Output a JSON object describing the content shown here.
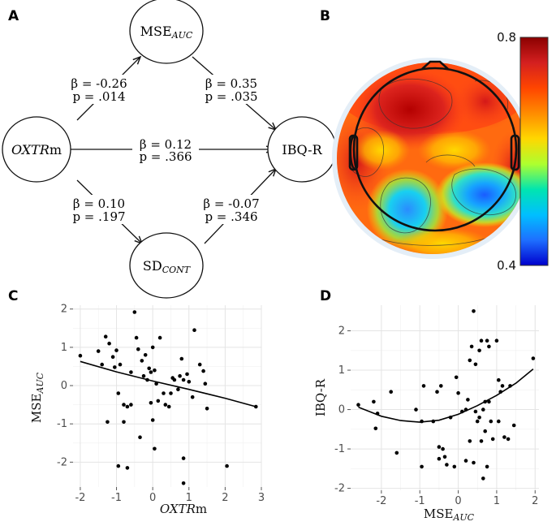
{
  "panels": {
    "A": "A",
    "B": "B",
    "C": "C",
    "D": "D"
  },
  "diagram": {
    "nodes": {
      "mse": {
        "base": "MSE",
        "sub": "AUC"
      },
      "oxtr": {
        "italic": "OXTR",
        "rest": "m"
      },
      "ibq": {
        "label": "IBQ-R"
      },
      "sd": {
        "base": "SD",
        "sub": "CONT"
      }
    },
    "paths": {
      "oxtr_mse": {
        "beta": "β = -0.26",
        "p": "p = .014"
      },
      "mse_ibq": {
        "beta": "β = 0.35",
        "p": "p = .035"
      },
      "oxtr_ibq": {
        "beta": "β = 0.12",
        "p": "p = .366"
      },
      "oxtr_sd": {
        "beta": "β = 0.10",
        "p": "p = .197"
      },
      "sd_ibq": {
        "beta": "β = -0.07",
        "p": "p = .346"
      }
    }
  },
  "topomap": {
    "colorbar": {
      "max_label": "0.8",
      "min_label": "0.4",
      "colors": [
        "#8b0000",
        "#d42020",
        "#ff4500",
        "#ff8c00",
        "#ffd700",
        "#adff2f",
        "#00e5b0",
        "#00bfff",
        "#1e6fff",
        "#0000cd"
      ]
    }
  },
  "chart_data": [
    {
      "type": "scatter",
      "panel": "C",
      "xlabel": {
        "italic": "OXTR",
        "rest": "m"
      },
      "ylabel": {
        "base": "MSE",
        "sub": "AUC"
      },
      "xlim": [
        -2.2,
        3.0
      ],
      "ylim": [
        -2.65,
        2.1
      ],
      "xticks": [
        -2,
        -1,
        0,
        1,
        2,
        3
      ],
      "yticks": [
        -2,
        -1,
        0,
        1,
        2
      ],
      "points": [
        [
          -2.0,
          0.78
        ],
        [
          -1.5,
          0.9
        ],
        [
          -1.4,
          0.55
        ],
        [
          -1.3,
          1.28
        ],
        [
          -1.2,
          1.1
        ],
        [
          -1.1,
          0.75
        ],
        [
          -1.05,
          0.48
        ],
        [
          -1.0,
          0.92
        ],
        [
          -0.95,
          -0.2
        ],
        [
          -0.9,
          0.55
        ],
        [
          -0.8,
          -0.5
        ],
        [
          -0.7,
          -0.55
        ],
        [
          -0.6,
          0.35
        ],
        [
          -0.5,
          1.92
        ],
        [
          -0.45,
          1.25
        ],
        [
          -0.4,
          0.95
        ],
        [
          -0.3,
          0.65
        ],
        [
          -0.25,
          0.25
        ],
        [
          -0.2,
          0.8
        ],
        [
          -0.15,
          0.15
        ],
        [
          -0.1,
          0.45
        ],
        [
          -0.05,
          0.35
        ],
        [
          0.0,
          1.0
        ],
        [
          0.05,
          0.4
        ],
        [
          0.1,
          0.05
        ],
        [
          0.15,
          -0.4
        ],
        [
          0.2,
          1.25
        ],
        [
          0.3,
          -0.2
        ],
        [
          0.35,
          -0.5
        ],
        [
          0.45,
          -0.55
        ],
        [
          0.55,
          0.2
        ],
        [
          0.6,
          0.15
        ],
        [
          0.7,
          -0.1
        ],
        [
          0.75,
          0.25
        ],
        [
          0.8,
          0.7
        ],
        [
          0.85,
          0.15
        ],
        [
          0.95,
          0.3
        ],
        [
          1.0,
          0.1
        ],
        [
          1.1,
          -0.3
        ],
        [
          1.15,
          1.45
        ],
        [
          1.3,
          0.55
        ],
        [
          1.4,
          0.38
        ],
        [
          1.45,
          0.05
        ],
        [
          1.5,
          -0.6
        ],
        [
          2.05,
          -2.1
        ],
        [
          2.85,
          -0.55
        ],
        [
          -1.25,
          -0.95
        ],
        [
          -0.95,
          -2.1
        ],
        [
          -0.7,
          -2.15
        ],
        [
          -0.8,
          -0.95
        ],
        [
          -0.35,
          -1.35
        ],
        [
          0.0,
          -0.9
        ],
        [
          0.05,
          -1.65
        ],
        [
          0.85,
          -1.9
        ],
        [
          0.85,
          -2.55
        ],
        [
          0.5,
          -0.2
        ],
        [
          -0.05,
          -0.45
        ],
        [
          -0.6,
          -0.5
        ]
      ],
      "curve": [
        [
          -2.0,
          0.63
        ],
        [
          -1.0,
          0.36
        ],
        [
          0.0,
          0.12
        ],
        [
          1.0,
          -0.1
        ],
        [
          2.0,
          -0.33
        ],
        [
          2.85,
          -0.55
        ]
      ]
    },
    {
      "type": "scatter",
      "panel": "D",
      "xlabel": {
        "base": "MSE",
        "sub": "AUC"
      },
      "ylabel": {
        "label": "IBQ-R"
      },
      "xlim": [
        -2.8,
        2.1
      ],
      "ylim": [
        -2.05,
        2.65
      ],
      "xticks": [
        -2,
        -1,
        0,
        1,
        2
      ],
      "yticks": [
        -2,
        -1,
        0,
        1,
        2
      ],
      "points": [
        [
          -2.6,
          0.12
        ],
        [
          -2.2,
          0.2
        ],
        [
          -2.1,
          -0.1
        ],
        [
          -2.15,
          -0.48
        ],
        [
          -1.75,
          0.45
        ],
        [
          -1.6,
          -1.1
        ],
        [
          -1.1,
          0.0
        ],
        [
          -0.95,
          -0.3
        ],
        [
          -0.95,
          -1.45
        ],
        [
          -0.9,
          0.6
        ],
        [
          -0.65,
          -0.3
        ],
        [
          -0.55,
          0.45
        ],
        [
          -0.5,
          -0.95
        ],
        [
          -0.45,
          0.6
        ],
        [
          -0.4,
          -1.0
        ],
        [
          -0.35,
          -1.2
        ],
        [
          -0.3,
          -1.4
        ],
        [
          -0.2,
          -0.2
        ],
        [
          -0.1,
          -1.45
        ],
        [
          -0.05,
          0.82
        ],
        [
          0.0,
          0.42
        ],
        [
          0.1,
          -0.05
        ],
        [
          0.2,
          0.0
        ],
        [
          0.2,
          -1.3
        ],
        [
          0.25,
          0.25
        ],
        [
          0.3,
          1.25
        ],
        [
          0.35,
          1.6
        ],
        [
          0.4,
          -1.35
        ],
        [
          0.4,
          2.5
        ],
        [
          0.45,
          1.15
        ],
        [
          0.45,
          -0.05
        ],
        [
          0.5,
          -0.3
        ],
        [
          0.55,
          1.5
        ],
        [
          0.55,
          -0.2
        ],
        [
          0.6,
          1.75
        ],
        [
          0.6,
          -0.8
        ],
        [
          0.65,
          0.0
        ],
        [
          0.7,
          -0.55
        ],
        [
          0.7,
          0.2
        ],
        [
          0.75,
          1.75
        ],
        [
          0.75,
          -1.45
        ],
        [
          0.8,
          0.2
        ],
        [
          0.8,
          1.6
        ],
        [
          0.85,
          -0.3
        ],
        [
          0.9,
          -0.75
        ],
        [
          1.0,
          1.75
        ],
        [
          1.05,
          -0.3
        ],
        [
          1.05,
          0.75
        ],
        [
          1.1,
          0.45
        ],
        [
          1.15,
          0.6
        ],
        [
          1.2,
          -0.7
        ],
        [
          1.3,
          -0.75
        ],
        [
          1.35,
          0.6
        ],
        [
          1.45,
          -0.4
        ],
        [
          1.95,
          1.3
        ],
        [
          0.65,
          -1.75
        ],
        [
          -0.5,
          -1.25
        ],
        [
          0.3,
          -0.8
        ]
      ],
      "curve": [
        [
          -2.6,
          0.06
        ],
        [
          -2.0,
          -0.17
        ],
        [
          -1.5,
          -0.28
        ],
        [
          -1.0,
          -0.32
        ],
        [
          -0.5,
          -0.27
        ],
        [
          0.0,
          -0.12
        ],
        [
          0.5,
          0.1
        ],
        [
          1.0,
          0.36
        ],
        [
          1.5,
          0.67
        ],
        [
          1.95,
          1.03
        ]
      ]
    }
  ]
}
